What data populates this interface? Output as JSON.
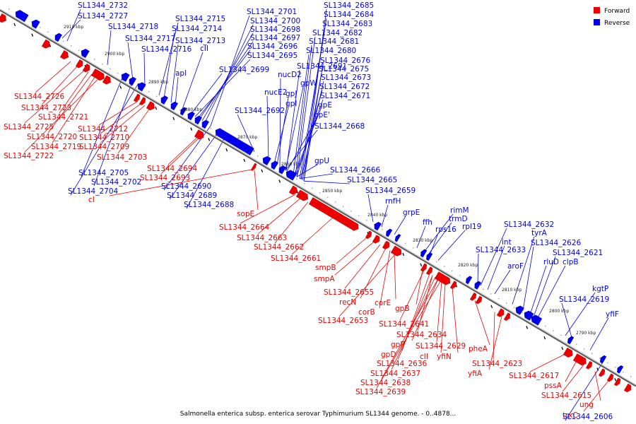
{
  "caption": "Salmonella enterica subsp. enterica serovar Typhimurium SL1344 genome. - 0..4878...",
  "legend": [
    {
      "label": "Forward",
      "color": "#ee0000"
    },
    {
      "label": "Reverse",
      "color": "#0000ee"
    }
  ],
  "colors": {
    "forward": "#ee0000",
    "reverse": "#0000ee",
    "backbone": "#555555"
  },
  "ticks": [
    "2910 kbp",
    "2900 kbp",
    "2890 kbp",
    "2880 kbp",
    "2870 kbp",
    "2860 kbp",
    "2850 kbp",
    "2840 kbp",
    "2830 kbp",
    "2820 kbp",
    "2810 kbp",
    "2800 kbp",
    "2790 kbp"
  ],
  "reverse_labels": [
    "SL1344_2732",
    "SL1344_2727",
    "SL1344_2718",
    "SL1344_2717",
    "SL1344_2716",
    "SL1344_2715",
    "SL1344_2714",
    "SL1344_2713",
    "cII",
    "apl",
    "SL1344_2701",
    "SL1344_2700",
    "SL1344_2698",
    "SL1344_2697",
    "SL1344_2696",
    "SL1344_2695",
    "SL1344_2699",
    "SL1344_2685",
    "SL1344_2684",
    "SL1344_2683",
    "SL1344_2682",
    "SL1344_2681",
    "SL1344_2680",
    "SL1344_2691",
    "nucD2",
    "SL1344_2676",
    "SL1344_2675",
    "SL1344_2673",
    "gpW",
    "nucE2",
    "SL1344_2672",
    "gpJ",
    "SL1344_2671",
    "gpI",
    "gpE",
    "SL1344_2692",
    "gpE'",
    "SL1344_2668",
    "gpU",
    "SL1344_2666",
    "SL1344_2665",
    "SL1344_2705",
    "SL1344_2702",
    "SL1344_2704",
    "SL1344_2690",
    "SL1344_2689",
    "SL1344_2688",
    "SL1344_2659",
    "rnfH",
    "grpE",
    "rimM",
    "trmD",
    "ffh",
    "rps16",
    "rpl19",
    "SL1344_2632",
    "int",
    "tyrA",
    "SL1344_2633",
    "SL1344_2626",
    "SL1344_2621",
    "aroF",
    "rluD",
    "clpB",
    "kgtP",
    "SL1344_2619",
    "yfiF",
    "SL1344_2606"
  ],
  "forward_labels": [
    "SL1344_2726",
    "SL1344_2723",
    "SL1344_2721",
    "SL1344_2725",
    "SL1344_2712",
    "SL1344_2720",
    "SL1344_2710",
    "SL1344_2719",
    "SL1344_2709",
    "SL1344_2722",
    "SL1344_2703",
    "SL1344_2694",
    "SL1344_2693",
    "cI",
    "sopE",
    "SL1344_2664",
    "SL1344_2663",
    "SL1344_2662",
    "SL1344_2661",
    "smpB",
    "smpA",
    "SL1344_2655",
    "recN",
    "corE",
    "corB",
    "gpB",
    "SL1344_2653",
    "SL1344_2641",
    "SL1344_2634",
    "gpF",
    "SL1344_2629",
    "cII",
    "yfiN",
    "gpD",
    "SL1344_2636",
    "SL1344_2637",
    "SL1344_2638",
    "SL1344_2639",
    "pheA",
    "SL1344_2623",
    "yfiA",
    "SL1344_2617",
    "pssA",
    "SL1344_2615",
    "ung",
    "trxC"
  ]
}
